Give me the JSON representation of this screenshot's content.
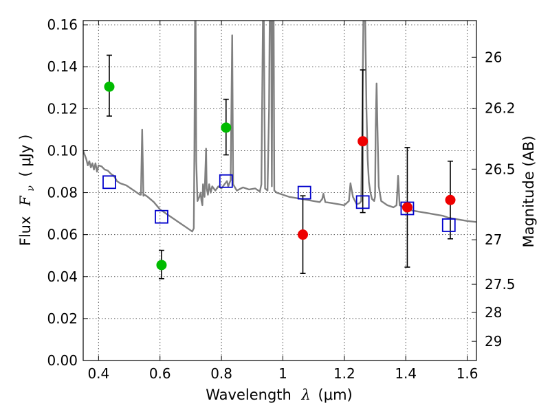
{
  "chart_data": {
    "type": "scatter",
    "title": "",
    "xlabel": {
      "prefix": "Wavelength",
      "symbol": "λ",
      "unit": "(μm)"
    },
    "ylabel": {
      "prefix": "Flux",
      "symbol": "F",
      "sub": "ν",
      "unit": "( μJy )"
    },
    "y2label": "Magnitude (AB)",
    "xlim": [
      0.35,
      1.63
    ],
    "ylim": [
      0.0,
      0.162
    ],
    "grid": true,
    "x_ticks": [
      {
        "value": 0.4,
        "label": "0.4"
      },
      {
        "value": 0.6,
        "label": "0.6"
      },
      {
        "value": 0.8,
        "label": "0.8"
      },
      {
        "value": 1.0,
        "label": "1"
      },
      {
        "value": 1.2,
        "label": "1.2"
      },
      {
        "value": 1.4,
        "label": "1.4"
      },
      {
        "value": 1.6,
        "label": "1.6"
      }
    ],
    "y_ticks": [
      {
        "value": 0.0,
        "label": "0.00"
      },
      {
        "value": 0.02,
        "label": "0.02"
      },
      {
        "value": 0.04,
        "label": "0.04"
      },
      {
        "value": 0.06,
        "label": "0.06"
      },
      {
        "value": 0.08,
        "label": "0.08"
      },
      {
        "value": 0.1,
        "label": "0.10"
      },
      {
        "value": 0.12,
        "label": "0.12"
      },
      {
        "value": 0.14,
        "label": "0.14"
      },
      {
        "value": 0.16,
        "label": "0.16"
      }
    ],
    "magnitude_ticks": [
      {
        "magnitude": 26,
        "label": "26"
      },
      {
        "magnitude": 26.2,
        "label": "26.2"
      },
      {
        "magnitude": 26.5,
        "label": "26.5"
      },
      {
        "magnitude": 27,
        "label": "27"
      },
      {
        "magnitude": 27.5,
        "label": "27.5"
      },
      {
        "magnitude": 28,
        "label": "28"
      },
      {
        "magnitude": 29,
        "label": "29"
      }
    ],
    "colors": {
      "green": "#00bb00",
      "red": "#ee0000",
      "blue": "#0000cc",
      "spectrum": "#808080",
      "error": "#000000"
    },
    "series": [
      {
        "marker": "circle",
        "color_key": "green",
        "points": [
          {
            "x": 0.435,
            "y": 0.1305,
            "err_low": 0.1165,
            "err_high": 0.1455
          },
          {
            "x": 0.605,
            "y": 0.0455,
            "err_low": 0.039,
            "err_high": 0.0525
          },
          {
            "x": 0.815,
            "y": 0.111,
            "err_low": 0.098,
            "err_high": 0.1245
          }
        ]
      },
      {
        "marker": "circle",
        "color_key": "red",
        "points": [
          {
            "x": 1.065,
            "y": 0.06,
            "err_low": 0.0415,
            "err_high": 0.0785
          },
          {
            "x": 1.26,
            "y": 0.1045,
            "err_low": 0.0705,
            "err_high": 0.1385
          },
          {
            "x": 1.405,
            "y": 0.073,
            "err_low": 0.0445,
            "err_high": 0.1015
          },
          {
            "x": 1.545,
            "y": 0.0765,
            "err_low": 0.058,
            "err_high": 0.095
          }
        ]
      },
      {
        "marker": "open-square",
        "color_key": "blue",
        "points": [
          {
            "x": 0.435,
            "y": 0.085
          },
          {
            "x": 0.605,
            "y": 0.0685
          },
          {
            "x": 0.815,
            "y": 0.0855
          },
          {
            "x": 1.07,
            "y": 0.08
          },
          {
            "x": 1.26,
            "y": 0.0755
          },
          {
            "x": 1.405,
            "y": 0.0725
          },
          {
            "x": 1.54,
            "y": 0.0645
          }
        ]
      },
      {
        "marker": "line",
        "color_key": "spectrum",
        "points": [
          [
            0.35,
            0.1
          ],
          [
            0.355,
            0.098
          ],
          [
            0.36,
            0.096
          ],
          [
            0.365,
            0.093
          ],
          [
            0.37,
            0.095
          ],
          [
            0.375,
            0.092
          ],
          [
            0.38,
            0.094
          ],
          [
            0.385,
            0.091
          ],
          [
            0.39,
            0.094
          ],
          [
            0.395,
            0.09
          ],
          [
            0.4,
            0.093
          ],
          [
            0.41,
            0.0925
          ],
          [
            0.42,
            0.091
          ],
          [
            0.43,
            0.0905
          ],
          [
            0.44,
            0.089
          ],
          [
            0.45,
            0.088
          ],
          [
            0.46,
            0.0855
          ],
          [
            0.47,
            0.0845
          ],
          [
            0.48,
            0.084
          ],
          [
            0.49,
            0.0835
          ],
          [
            0.5,
            0.0825
          ],
          [
            0.52,
            0.0805
          ],
          [
            0.535,
            0.079
          ],
          [
            0.538,
            0.079
          ],
          [
            0.542,
            0.11
          ],
          [
            0.546,
            0.0785
          ],
          [
            0.55,
            0.079
          ],
          [
            0.56,
            0.078
          ],
          [
            0.58,
            0.0755
          ],
          [
            0.6,
            0.072
          ],
          [
            0.62,
            0.07
          ],
          [
            0.64,
            0.068
          ],
          [
            0.66,
            0.066
          ],
          [
            0.68,
            0.064
          ],
          [
            0.7,
            0.062
          ],
          [
            0.705,
            0.0615
          ],
          [
            0.71,
            0.063
          ],
          [
            0.712,
            0.1
          ],
          [
            0.714,
            0.162
          ],
          [
            0.716,
            0.162
          ],
          [
            0.718,
            0.095
          ],
          [
            0.722,
            0.076
          ],
          [
            0.728,
            0.078
          ],
          [
            0.732,
            0.08
          ],
          [
            0.735,
            0.076
          ],
          [
            0.738,
            0.074
          ],
          [
            0.74,
            0.084
          ],
          [
            0.745,
            0.078
          ],
          [
            0.75,
            0.101
          ],
          [
            0.752,
            0.082
          ],
          [
            0.756,
            0.079
          ],
          [
            0.76,
            0.084
          ],
          [
            0.765,
            0.08
          ],
          [
            0.77,
            0.083
          ],
          [
            0.78,
            0.081
          ],
          [
            0.79,
            0.083
          ],
          [
            0.8,
            0.082
          ],
          [
            0.81,
            0.084
          ],
          [
            0.818,
            0.0855
          ],
          [
            0.822,
            0.083
          ],
          [
            0.83,
            0.086
          ],
          [
            0.835,
            0.155
          ],
          [
            0.838,
            0.084
          ],
          [
            0.85,
            0.081
          ],
          [
            0.87,
            0.0825
          ],
          [
            0.89,
            0.0815
          ],
          [
            0.91,
            0.082
          ],
          [
            0.925,
            0.0805
          ],
          [
            0.93,
            0.084
          ],
          [
            0.935,
            0.162
          ],
          [
            0.938,
            0.162
          ],
          [
            0.942,
            0.082
          ],
          [
            0.95,
            0.081
          ],
          [
            0.955,
            0.12
          ],
          [
            0.957,
            0.162
          ],
          [
            0.962,
            0.162
          ],
          [
            0.964,
            0.083
          ],
          [
            0.966,
            0.162
          ],
          [
            0.97,
            0.162
          ],
          [
            0.972,
            0.081
          ],
          [
            0.98,
            0.08
          ],
          [
            1.0,
            0.079
          ],
          [
            1.02,
            0.078
          ],
          [
            1.04,
            0.0775
          ],
          [
            1.06,
            0.077
          ],
          [
            1.08,
            0.0765
          ],
          [
            1.1,
            0.076
          ],
          [
            1.12,
            0.0755
          ],
          [
            1.128,
            0.077
          ],
          [
            1.132,
            0.0795
          ],
          [
            1.138,
            0.0755
          ],
          [
            1.16,
            0.075
          ],
          [
            1.18,
            0.0745
          ],
          [
            1.2,
            0.074
          ],
          [
            1.215,
            0.076
          ],
          [
            1.22,
            0.0845
          ],
          [
            1.228,
            0.078
          ],
          [
            1.24,
            0.0745
          ],
          [
            1.25,
            0.075
          ],
          [
            1.255,
            0.076
          ],
          [
            1.258,
            0.11
          ],
          [
            1.262,
            0.162
          ],
          [
            1.268,
            0.162
          ],
          [
            1.272,
            0.12
          ],
          [
            1.276,
            0.096
          ],
          [
            1.28,
            0.085
          ],
          [
            1.285,
            0.08
          ],
          [
            1.29,
            0.077
          ],
          [
            1.297,
            0.076
          ],
          [
            1.3,
            0.078
          ],
          [
            1.302,
            0.11
          ],
          [
            1.305,
            0.132
          ],
          [
            1.308,
            0.11
          ],
          [
            1.312,
            0.083
          ],
          [
            1.32,
            0.076
          ],
          [
            1.34,
            0.074
          ],
          [
            1.36,
            0.073
          ],
          [
            1.37,
            0.074
          ],
          [
            1.375,
            0.088
          ],
          [
            1.38,
            0.074
          ],
          [
            1.4,
            0.0725
          ],
          [
            1.42,
            0.0715
          ],
          [
            1.44,
            0.071
          ],
          [
            1.46,
            0.0705
          ],
          [
            1.48,
            0.07
          ],
          [
            1.5,
            0.0695
          ],
          [
            1.52,
            0.069
          ],
          [
            1.54,
            0.068
          ],
          [
            1.56,
            0.0675
          ],
          [
            1.58,
            0.067
          ],
          [
            1.6,
            0.0665
          ],
          [
            1.63,
            0.066
          ]
        ]
      }
    ]
  }
}
